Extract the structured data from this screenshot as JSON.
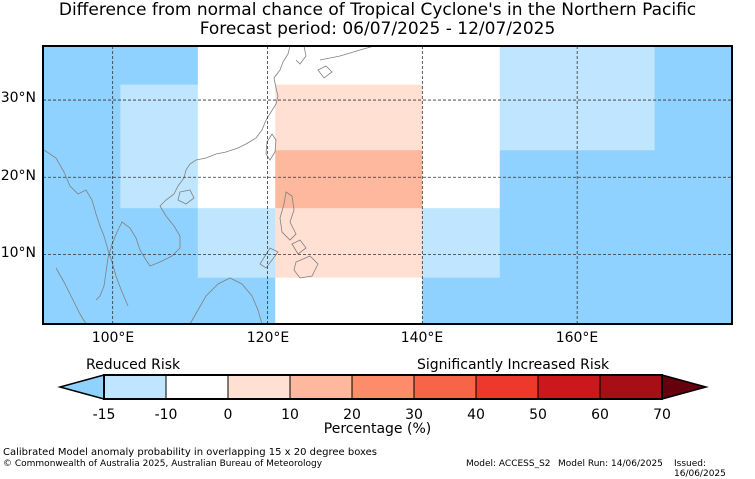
{
  "title_line1": "Difference from normal chance of Tropical Cyclone's in the Northern Pacific",
  "title_line2": "Forecast period: 06/07/2025 - 12/07/2025",
  "map": {
    "lon_range": [
      91,
      180
    ],
    "lat_range": [
      1,
      37
    ],
    "lat_ticks": [
      {
        "value": 30,
        "label": "30°N"
      },
      {
        "value": 20,
        "label": "20°N"
      },
      {
        "value": 10,
        "label": "10°N"
      }
    ],
    "lon_ticks": [
      {
        "value": 100,
        "label": "100°E"
      },
      {
        "value": 120,
        "label": "120°E"
      },
      {
        "value": 140,
        "label": "140°E"
      },
      {
        "value": 160,
        "label": "160°E"
      }
    ],
    "cells": [
      {
        "lon": [
          91,
          101
        ],
        "lat": [
          1,
          37
        ],
        "color": "#8fd2ff"
      },
      {
        "lon": [
          101,
          111
        ],
        "lat": [
          32,
          37
        ],
        "color": "#8fd2ff"
      },
      {
        "lon": [
          101,
          111
        ],
        "lat": [
          16,
          32
        ],
        "color": "#c0e6ff"
      },
      {
        "lon": [
          101,
          111
        ],
        "lat": [
          1,
          16
        ],
        "color": "#8fd2ff"
      },
      {
        "lon": [
          111,
          121
        ],
        "lat": [
          16,
          37
        ],
        "color": "#ffffff"
      },
      {
        "lon": [
          111,
          121
        ],
        "lat": [
          7,
          16
        ],
        "color": "#c0e6ff"
      },
      {
        "lon": [
          111,
          121
        ],
        "lat": [
          1,
          7
        ],
        "color": "#8fd2ff"
      },
      {
        "lon": [
          121,
          140
        ],
        "lat": [
          32,
          37
        ],
        "color": "#ffffff"
      },
      {
        "lon": [
          121,
          140
        ],
        "lat": [
          23.5,
          32
        ],
        "color": "#ffe0d3"
      },
      {
        "lon": [
          121,
          140
        ],
        "lat": [
          16,
          23.5
        ],
        "color": "#fdb89d"
      },
      {
        "lon": [
          121,
          140
        ],
        "lat": [
          7,
          16
        ],
        "color": "#ffe0d3"
      },
      {
        "lon": [
          121,
          140
        ],
        "lat": [
          1,
          7
        ],
        "color": "#ffffff"
      },
      {
        "lon": [
          140,
          150
        ],
        "lat": [
          16,
          37
        ],
        "color": "#ffffff"
      },
      {
        "lon": [
          140,
          150
        ],
        "lat": [
          7,
          16
        ],
        "color": "#c0e6ff"
      },
      {
        "lon": [
          140,
          150
        ],
        "lat": [
          1,
          7
        ],
        "color": "#8fd2ff"
      },
      {
        "lon": [
          150,
          170
        ],
        "lat": [
          23.5,
          37
        ],
        "color": "#c0e6ff"
      },
      {
        "lon": [
          150,
          170
        ],
        "lat": [
          1,
          23.5
        ],
        "color": "#8fd2ff"
      },
      {
        "lon": [
          170,
          180
        ],
        "lat": [
          1,
          37
        ],
        "color": "#8fd2ff"
      }
    ]
  },
  "colorbar": {
    "left_label": "Reduced Risk",
    "right_label": "Significantly Increased Risk",
    "title": "Percentage (%)",
    "ticks": [
      "-15",
      "-10",
      "0",
      "10",
      "20",
      "30",
      "40",
      "50",
      "60",
      "70"
    ],
    "colors": [
      "#8fd2ff",
      "#c0e6ff",
      "#ffffff",
      "#ffe0d3",
      "#fdb89d",
      "#fc8c6a",
      "#f86447",
      "#ed392c",
      "#cb181d",
      "#a50f15",
      "#67000d"
    ]
  },
  "footer": {
    "line1": "Calibrated Model anomaly probability in overlapping 15 x 20 degree boxes",
    "line2": "© Commonwealth of Australia 2025, Australian Bureau of Meteorology",
    "model": "Model: ACCESS_S2",
    "model_run": "Model Run: 14/06/2025",
    "issued": "Issued: 16/06/2025"
  },
  "colors": {
    "frame": "#000000",
    "grid": "#333333",
    "coast": "#808080"
  }
}
